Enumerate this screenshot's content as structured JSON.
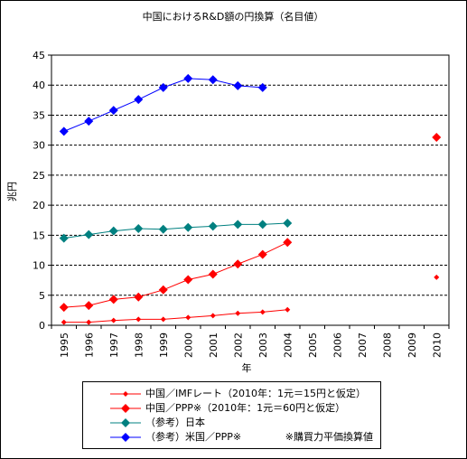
{
  "chart_data": {
    "type": "line",
    "title": "中国におけるR&D額の円換算（名目値）",
    "xlabel": "年",
    "ylabel": "兆円",
    "ylim": [
      0,
      45
    ],
    "yticks": [
      0,
      5,
      10,
      15,
      20,
      25,
      30,
      35,
      40,
      45
    ],
    "x": [
      "1995",
      "1996",
      "1997",
      "1998",
      "1999",
      "2000",
      "2001",
      "2002",
      "2003",
      "2004",
      "2005",
      "2006",
      "2007",
      "2008",
      "2009",
      "2010"
    ],
    "grid": "horizontal-dashed",
    "legend_position": "bottom",
    "series": [
      {
        "name": "中国／IMFレート（2010年：1元＝15円と仮定）",
        "color": "#ff0000",
        "marker": "small-diamond",
        "line_values": [
          0.5,
          0.5,
          0.8,
          1.0,
          1.0,
          1.3,
          1.6,
          2.0,
          2.2,
          2.6
        ],
        "extra_point": {
          "x": "2010",
          "y": 8.0
        }
      },
      {
        "name": "中国／PPP※（2010年：1元＝60円と仮定）",
        "color": "#ff0000",
        "marker": "diamond",
        "line_values": [
          3.0,
          3.3,
          4.3,
          4.7,
          5.9,
          7.6,
          8.5,
          10.2,
          11.8,
          13.8
        ],
        "extra_point": {
          "x": "2010",
          "y": 31.3
        }
      },
      {
        "name": "（参考）日本",
        "color": "#008080",
        "marker": "diamond",
        "line_values": [
          14.5,
          15.1,
          15.7,
          16.1,
          16.0,
          16.3,
          16.5,
          16.8,
          16.8,
          17.0
        ]
      },
      {
        "name": "（参考）米国／PPP※",
        "color": "#0000ff",
        "marker": "diamond",
        "line_values": [
          32.3,
          34.0,
          35.8,
          37.6,
          39.6,
          41.1,
          40.9,
          39.9,
          39.6
        ]
      }
    ],
    "note": "※購買力平価換算値"
  }
}
